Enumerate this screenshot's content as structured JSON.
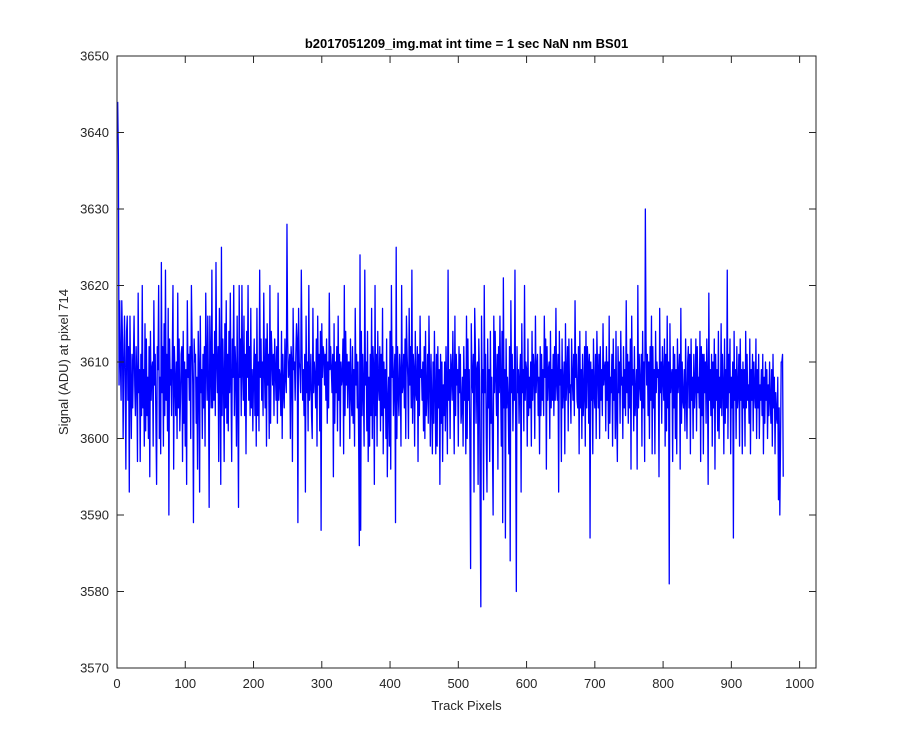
{
  "chart_data": {
    "type": "line",
    "title": "b2017051209_img.mat int time = 1 sec  NaN nm BS01",
    "xlabel": "Track Pixels",
    "ylabel": "Signal (ADU) at pixel 714",
    "xlim": [
      0,
      1024
    ],
    "ylim": [
      3570,
      3650
    ],
    "x_ticks": [
      0,
      100,
      200,
      300,
      400,
      500,
      600,
      700,
      800,
      900,
      1000
    ],
    "y_ticks": [
      3570,
      3580,
      3590,
      3600,
      3610,
      3620,
      3630,
      3640,
      3650
    ],
    "grid": false,
    "series": [
      {
        "color": "#0000ff",
        "x_start": 1,
        "x_step": 1,
        "values": [
          3644,
          3637,
          3607,
          3618,
          3610,
          3605,
          3618,
          3613,
          3600,
          3610,
          3616,
          3608,
          3596,
          3614,
          3616,
          3605,
          3612,
          3593,
          3616,
          3607,
          3600,
          3611,
          3604,
          3610,
          3616,
          3607,
          3603,
          3612,
          3608,
          3597,
          3619,
          3606,
          3609,
          3597,
          3611,
          3603,
          3620,
          3604,
          3609,
          3599,
          3615,
          3601,
          3613,
          3603,
          3608,
          3600,
          3612,
          3595,
          3614,
          3605,
          3609,
          3610,
          3599,
          3618,
          3607,
          3611,
          3602,
          3594,
          3612,
          3609,
          3620,
          3600,
          3608,
          3598,
          3623,
          3606,
          3612,
          3599,
          3615,
          3603,
          3622,
          3605,
          3611,
          3601,
          3617,
          3590,
          3613,
          3607,
          3609,
          3603,
          3611,
          3620,
          3596,
          3612,
          3608,
          3603,
          3610,
          3600,
          3619,
          3604,
          3613,
          3601,
          3605,
          3611,
          3612,
          3597,
          3614,
          3602,
          3610,
          3599,
          3609,
          3594,
          3618,
          3608,
          3611,
          3605,
          3612,
          3600,
          3620,
          3613,
          3607,
          3589,
          3613,
          3610,
          3611,
          3602,
          3608,
          3596,
          3614,
          3609,
          3593,
          3616,
          3606,
          3609,
          3600,
          3611,
          3604,
          3612,
          3599,
          3619,
          3610,
          3605,
          3616,
          3607,
          3591,
          3616,
          3610,
          3604,
          3622,
          3604,
          3611,
          3605,
          3614,
          3603,
          3623,
          3610,
          3606,
          3612,
          3597,
          3617,
          3609,
          3594,
          3625,
          3603,
          3613,
          3608,
          3597,
          3615,
          3604,
          3618,
          3602,
          3611,
          3601,
          3614,
          3606,
          3619,
          3607,
          3597,
          3613,
          3608,
          3620,
          3603,
          3612,
          3609,
          3599,
          3616,
          3605,
          3591,
          3620,
          3608,
          3613,
          3603,
          3620,
          3609,
          3605,
          3616,
          3603,
          3611,
          3598,
          3614,
          3608,
          3620,
          3605,
          3612,
          3603,
          3617,
          3604,
          3609,
          3601,
          3608,
          3613,
          3603,
          3611,
          3599,
          3617,
          3603,
          3610,
          3601,
          3622,
          3608,
          3613,
          3605,
          3610,
          3603,
          3619,
          3609,
          3604,
          3613,
          3599,
          3615,
          3607,
          3611,
          3600,
          3620,
          3602,
          3614,
          3611,
          3607,
          3611,
          3603,
          3613,
          3609,
          3605,
          3612,
          3602,
          3619,
          3605,
          3609,
          3608,
          3603,
          3614,
          3600,
          3611,
          3606,
          3604,
          3613,
          3608,
          3606,
          3628,
          3613,
          3608,
          3609,
          3611,
          3600,
          3612,
          3610,
          3597,
          3617,
          3609,
          3610,
          3605,
          3611,
          3615,
          3613,
          3589,
          3617,
          3610,
          3609,
          3606,
          3622,
          3612,
          3605,
          3609,
          3603,
          3611,
          3593,
          3616,
          3606,
          3610,
          3601,
          3620,
          3605,
          3607,
          3611,
          3603,
          3600,
          3617,
          3606,
          3610,
          3608,
          3604,
          3613,
          3599,
          3616,
          3607,
          3611,
          3601,
          3614,
          3588,
          3615,
          3608,
          3612,
          3611,
          3607,
          3611,
          3605,
          3613,
          3602,
          3610,
          3604,
          3619,
          3609,
          3612,
          3609,
          3606,
          3611,
          3595,
          3615,
          3602,
          3610,
          3606,
          3612,
          3601,
          3616,
          3605,
          3611,
          3599,
          3610,
          3607,
          3608,
          3613,
          3598,
          3620,
          3603,
          3614,
          3607,
          3611,
          3604,
          3610,
          3610,
          3600,
          3613,
          3606,
          3603,
          3612,
          3602,
          3609,
          3599,
          3617,
          3607,
          3611,
          3604,
          3610,
          3600,
          3586,
          3624,
          3588,
          3614,
          3603,
          3611,
          3606,
          3599,
          3622,
          3607,
          3610,
          3601,
          3614,
          3597,
          3608,
          3599,
          3611,
          3603,
          3617,
          3600,
          3612,
          3609,
          3594,
          3620,
          3603,
          3611,
          3599,
          3614,
          3607,
          3605,
          3612,
          3601,
          3611,
          3603,
          3617,
          3598,
          3610,
          3604,
          3609,
          3600,
          3613,
          3595,
          3605,
          3608,
          3599,
          3614,
          3596,
          3620,
          3608,
          3612,
          3603,
          3608,
          3611,
          3589,
          3625,
          3600,
          3612,
          3606,
          3603,
          3611,
          3608,
          3599,
          3620,
          3606,
          3607,
          3611,
          3604,
          3613,
          3600,
          3616,
          3611,
          3608,
          3600,
          3617,
          3607,
          3612,
          3604,
          3622,
          3602,
          3611,
          3609,
          3599,
          3614,
          3606,
          3605,
          3612,
          3597,
          3611,
          3603,
          3616,
          3608,
          3609,
          3605,
          3610,
          3601,
          3612,
          3600,
          3614,
          3603,
          3606,
          3611,
          3602,
          3616,
          3608,
          3599,
          3611,
          3605,
          3598,
          3610,
          3602,
          3614,
          3606,
          3598,
          3611,
          3599,
          3612,
          3604,
          3609,
          3594,
          3611,
          3602,
          3610,
          3597,
          3607,
          3603,
          3610,
          3601,
          3612,
          3606,
          3598,
          3622,
          3605,
          3609,
          3600,
          3611,
          3609,
          3605,
          3614,
          3607,
          3598,
          3616,
          3603,
          3611,
          3607,
          3609,
          3599,
          3612,
          3606,
          3611,
          3602,
          3604,
          3608,
          3599,
          3612,
          3605,
          3609,
          3598,
          3616,
          3600,
          3613,
          3605,
          3609,
          3599,
          3583,
          3615,
          3608,
          3606,
          3611,
          3593,
          3617,
          3612,
          3602,
          3609,
          3610,
          3594,
          3613,
          3608,
          3592,
          3578,
          3616,
          3606,
          3609,
          3592,
          3620,
          3606,
          3611,
          3600,
          3593,
          3613,
          3604,
          3609,
          3597,
          3614,
          3602,
          3608,
          3599,
          3590,
          3616,
          3606,
          3614,
          3608,
          3603,
          3611,
          3596,
          3612,
          3606,
          3616,
          3607,
          3599,
          3614,
          3589,
          3621,
          3604,
          3609,
          3587,
          3613,
          3604,
          3608,
          3605,
          3598,
          3612,
          3584,
          3618,
          3606,
          3611,
          3601,
          3609,
          3605,
          3622,
          3603,
          3580,
          3612,
          3606,
          3609,
          3602,
          3608,
          3611,
          3593,
          3615,
          3606,
          3609,
          3601,
          3620,
          3605,
          3610,
          3609,
          3599,
          3613,
          3603,
          3608,
          3604,
          3610,
          3599,
          3614,
          3605,
          3611,
          3609,
          3600,
          3616,
          3606,
          3609,
          3611,
          3603,
          3608,
          3598,
          3612,
          3603,
          3611,
          3605,
          3609,
          3603,
          3616,
          3608,
          3613,
          3596,
          3612,
          3605,
          3609,
          3610,
          3600,
          3614,
          3604,
          3609,
          3605,
          3611,
          3603,
          3612,
          3605,
          3617,
          3607,
          3605,
          3611,
          3593,
          3614,
          3607,
          3609,
          3597,
          3613,
          3604,
          3607,
          3610,
          3598,
          3615,
          3605,
          3608,
          3612,
          3601,
          3613,
          3606,
          3607,
          3602,
          3613,
          3608,
          3605,
          3611,
          3603,
          3618,
          3608,
          3611,
          3605,
          3604,
          3612,
          3598,
          3614,
          3604,
          3609,
          3600,
          3611,
          3603,
          3606,
          3612,
          3599,
          3614,
          3604,
          3612,
          3610,
          3602,
          3611,
          3587,
          3610,
          3605,
          3609,
          3598,
          3613,
          3606,
          3604,
          3611,
          3600,
          3614,
          3609,
          3604,
          3611,
          3600,
          3612,
          3605,
          3609,
          3603,
          3615,
          3607,
          3609,
          3610,
          3601,
          3612,
          3605,
          3610,
          3600,
          3616,
          3602,
          3608,
          3606,
          3611,
          3599,
          3613,
          3605,
          3609,
          3600,
          3614,
          3603,
          3597,
          3612,
          3606,
          3610,
          3602,
          3614,
          3607,
          3608,
          3600,
          3612,
          3604,
          3609,
          3603,
          3618,
          3606,
          3611,
          3602,
          3610,
          3604,
          3613,
          3596,
          3616,
          3607,
          3609,
          3601,
          3612,
          3603,
          3606,
          3609,
          3596,
          3620,
          3604,
          3611,
          3607,
          3605,
          3611,
          3599,
          3614,
          3604,
          3610,
          3597,
          3630,
          3613,
          3607,
          3611,
          3603,
          3610,
          3600,
          3612,
          3605,
          3616,
          3598,
          3612,
          3604,
          3609,
          3598,
          3614,
          3606,
          3610,
          3608,
          3609,
          3595,
          3617,
          3606,
          3610,
          3602,
          3612,
          3608,
          3605,
          3613,
          3599,
          3611,
          3601,
          3616,
          3604,
          3610,
          3581,
          3615,
          3606,
          3608,
          3609,
          3597,
          3612,
          3604,
          3611,
          3600,
          3609,
          3598,
          3613,
          3606,
          3608,
          3611,
          3596,
          3617,
          3602,
          3610,
          3605,
          3604,
          3609,
          3601,
          3613,
          3606,
          3600,
          3610,
          3612,
          3604,
          3611,
          3598,
          3613,
          3605,
          3608,
          3600,
          3611,
          3604,
          3607,
          3613,
          3601,
          3612,
          3606,
          3608,
          3604,
          3614,
          3597,
          3612,
          3603,
          3611,
          3598,
          3611,
          3606,
          3610,
          3602,
          3613,
          3608,
          3594,
          3619,
          3605,
          3609,
          3603,
          3611,
          3599,
          3610,
          3604,
          3613,
          3596,
          3611,
          3605,
          3609,
          3601,
          3614,
          3600,
          3608,
          3604,
          3615,
          3603,
          3611,
          3607,
          3598,
          3613,
          3602,
          3609,
          3604,
          3622,
          3600,
          3611,
          3606,
          3613,
          3598,
          3608,
          3604,
          3610,
          3587,
          3614,
          3605,
          3609,
          3600,
          3612,
          3604,
          3606,
          3611,
          3599,
          3613,
          3605,
          3609,
          3598,
          3610,
          3604,
          3609,
          3599,
          3614,
          3604,
          3611,
          3605,
          3607,
          3602,
          3613,
          3598,
          3609,
          3605,
          3611,
          3601,
          3610,
          3606,
          3604,
          3613,
          3600,
          3609,
          3604,
          3611,
          3600,
          3607,
          3605,
          3609,
          3603,
          3611,
          3598,
          3608,
          3602,
          3610,
          3605,
          3609,
          3600,
          3607,
          3603,
          3610,
          3605,
          3602,
          3609,
          3599,
          3611,
          3604,
          3608,
          3598,
          3606,
          3603,
          3602,
          3608,
          3592,
          3604,
          3590,
          3599,
          3610,
          3610,
          3611,
          3595
        ]
      }
    ]
  }
}
